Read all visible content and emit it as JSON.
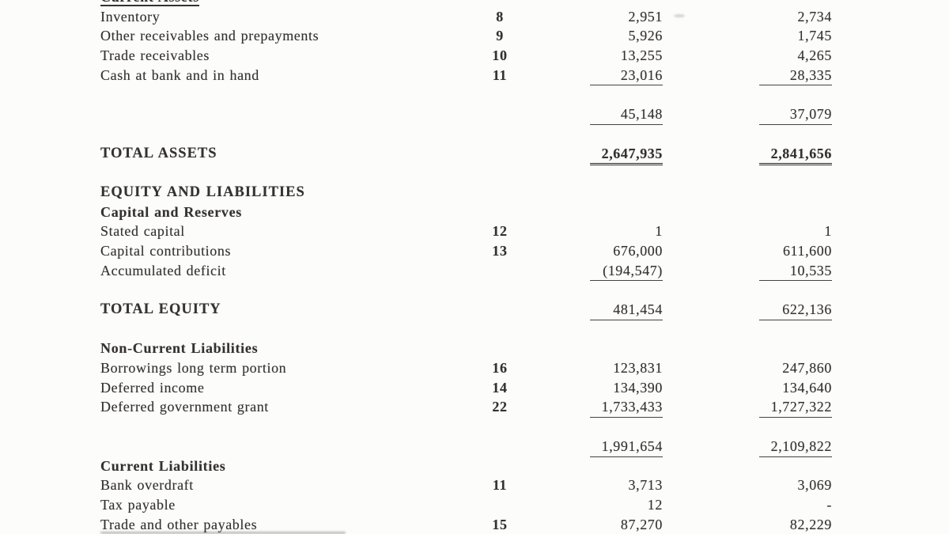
{
  "page": {
    "kind_label": "Statement of Financial Position (scanned page, cropped)",
    "ink_color": "#34322e",
    "paper_color": "#fcfcfb",
    "rule_color": "#45433e",
    "rule_heavy_color": "#2f2d2a"
  },
  "rows": [
    {
      "label": "Current Assets",
      "bold": true,
      "cutoff": true
    },
    {
      "label": "Inventory",
      "note": "8",
      "v1": "2,951",
      "v2": "2,734"
    },
    {
      "label": "Other receivables and prepayments",
      "note": "9",
      "v1": "5,926",
      "v2": "1,745"
    },
    {
      "label": "Trade receivables",
      "note": "10",
      "v1": "13,255",
      "v2": "4,265"
    },
    {
      "label": "Cash at bank and in hand",
      "note": "11",
      "v1": "23,016",
      "v2": "28,335",
      "rule": "single"
    },
    {
      "spacer": true
    },
    {
      "v1": "45,148",
      "v2": "37,079",
      "rule": "single"
    },
    {
      "spacer": true
    },
    {
      "label": "TOTAL ASSETS",
      "bold": true,
      "major": true,
      "v1": "2,647,935",
      "v2": "2,841,656",
      "rule": "double",
      "value_bold": true
    },
    {
      "spacer": true
    },
    {
      "label": "EQUITY AND LIABILITIES",
      "bold": true,
      "major": true
    },
    {
      "label": "Capital and Reserves",
      "bold": true
    },
    {
      "label": "Stated capital",
      "note": "12",
      "v1": "1",
      "v2": "1"
    },
    {
      "label": "Capital contributions",
      "note": "13",
      "v1": "676,000",
      "v2": "611,600"
    },
    {
      "label": "Accumulated deficit",
      "v1": "(194,547)",
      "v2": "10,535",
      "rule": "single"
    },
    {
      "spacer": true
    },
    {
      "label": "TOTAL EQUITY",
      "bold": true,
      "major": true,
      "v1": "481,454",
      "v2": "622,136",
      "rule": "single"
    },
    {
      "spacer": true
    },
    {
      "label": "Non-Current Liabilities",
      "bold": true
    },
    {
      "label": "Borrowings long term portion",
      "note": "16",
      "v1": "123,831",
      "v2": "247,860"
    },
    {
      "label": "Deferred income",
      "note": "14",
      "v1": "134,390",
      "v2": "134,640"
    },
    {
      "label": "Deferred government grant",
      "note": "22",
      "v1": "1,733,433",
      "v2": "1,727,322",
      "rule": "single"
    },
    {
      "spacer": true
    },
    {
      "v1": "1,991,654",
      "v2": "2,109,822",
      "rule": "single"
    },
    {
      "label": "Current Liabilities",
      "bold": true
    },
    {
      "label": "Bank overdraft",
      "note": "11",
      "v1": "3,713",
      "v2": "3,069"
    },
    {
      "label": "Tax payable",
      "v1": "12",
      "v2": "-"
    },
    {
      "label": "Trade and other payables",
      "note": "15",
      "v1": "87,270",
      "v2": "82,229"
    }
  ]
}
